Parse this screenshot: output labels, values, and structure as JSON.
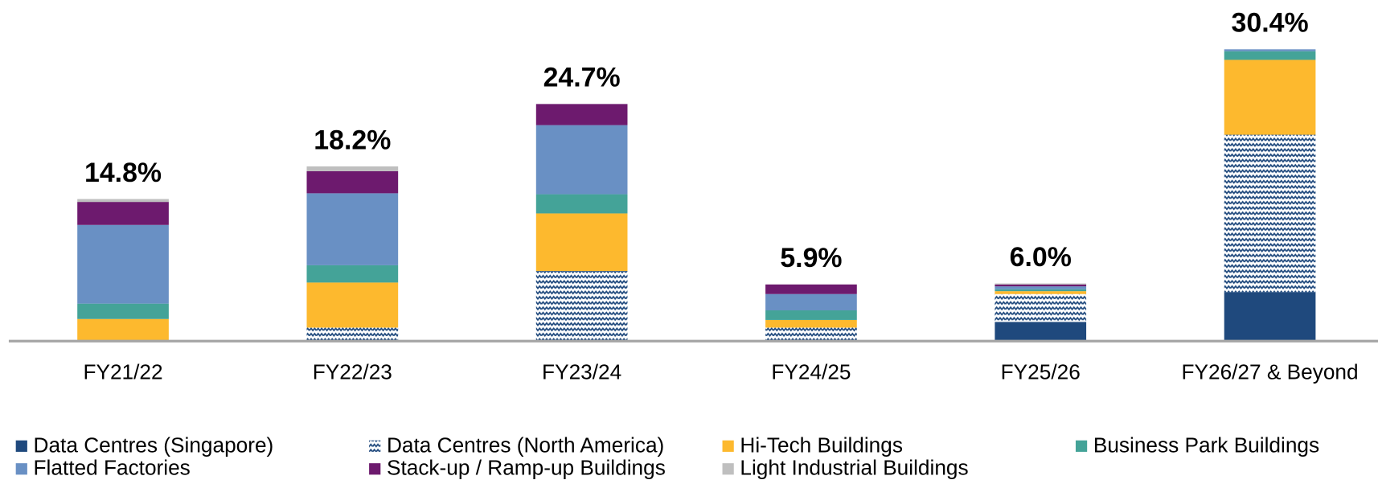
{
  "chart_data": {
    "type": "stacked_bar",
    "categories": [
      "FY21/22",
      "FY22/23",
      "FY23/24",
      "FY24/25",
      "FY25/26",
      "FY26/27 & Beyond"
    ],
    "series": [
      {
        "name": "Data Centres (Singapore)",
        "color": "#1f497d",
        "values": [
          0,
          0,
          0,
          0,
          2.0,
          5.1
        ]
      },
      {
        "name": "Data Centres (North America)",
        "color": "#1f497d",
        "pattern": "zigzag",
        "values": [
          0,
          1.4,
          7.3,
          1.4,
          2.9,
          16.4
        ]
      },
      {
        "name": "Hi-Tech Buildings",
        "color": "#fdb92e",
        "values": [
          2.3,
          4.7,
          6.0,
          0.8,
          0.3,
          7.8
        ]
      },
      {
        "name": "Business Park Buildings",
        "color": "#44a398",
        "values": [
          1.6,
          1.8,
          2.0,
          1.0,
          0.2,
          0.9
        ]
      },
      {
        "name": "Flatted Factories",
        "color": "#6990c4",
        "values": [
          8.2,
          7.5,
          7.2,
          1.7,
          0.3,
          0.2
        ]
      },
      {
        "name": "Stack-up / Ramp-up Buildings",
        "color": "#6d1a6e",
        "values": [
          2.4,
          2.3,
          2.2,
          1.0,
          0.2,
          0
        ]
      },
      {
        "name": "Light Industrial Buildings",
        "color": "#bfbfbf",
        "values": [
          0.3,
          0.5,
          0,
          0,
          0.1,
          0
        ]
      }
    ],
    "totals": {
      "values": [
        14.8,
        18.2,
        24.7,
        5.9,
        6.0,
        30.4
      ],
      "value_labels": [
        "14.8%",
        "18.2%",
        "24.7%",
        "5.9%",
        "6.0%",
        "30.4%"
      ]
    }
  }
}
